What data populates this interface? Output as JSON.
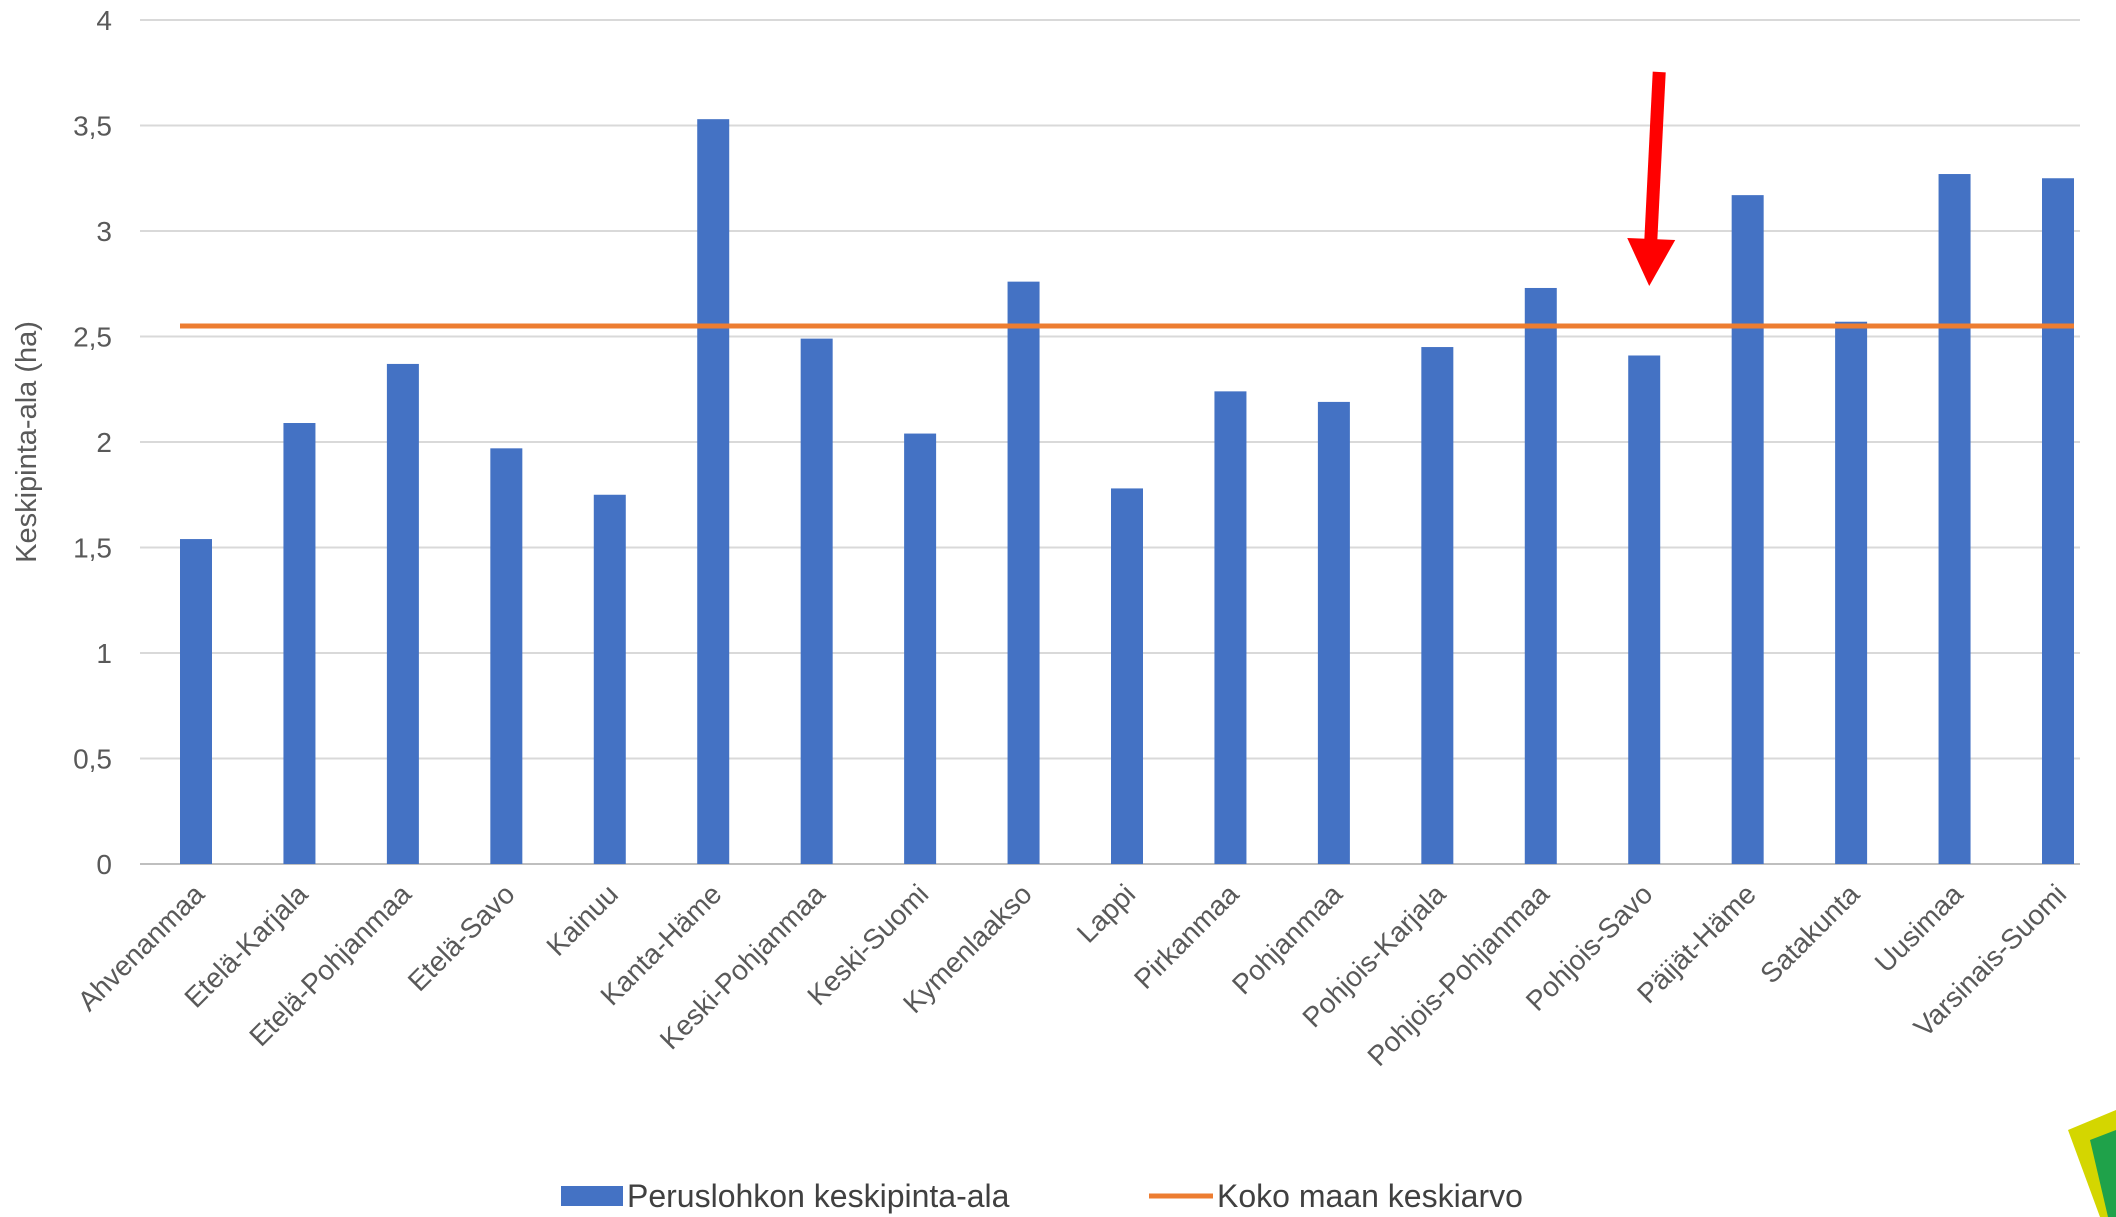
{
  "chart_data": {
    "type": "bar",
    "ylabel": "Keskipinta-ala (ha)",
    "ylim": [
      0,
      4
    ],
    "yticks": [
      "0",
      "0,5",
      "1",
      "1,5",
      "2",
      "2,5",
      "3",
      "3,5",
      "4"
    ],
    "grid": true,
    "legend_position": "bottom",
    "categories": [
      "Ahvenanmaa",
      "Etelä-Karjala",
      "Etelä-Pohjanmaa",
      "Etelä-Savo",
      "Kainuu",
      "Kanta-Häme",
      "Keski-Pohjanmaa",
      "Keski-Suomi",
      "Kymenlaakso",
      "Lappi",
      "Pirkanmaa",
      "Pohjanmaa",
      "Pohjois-Karjala",
      "Pohjois-Pohjanmaa",
      "Pohjois-Savo",
      "Päijät-Häme",
      "Satakunta",
      "Uusimaa",
      "Varsinais-Suomi"
    ],
    "series": [
      {
        "name": "Peruslohkon keskipinta-ala",
        "type": "bar",
        "color": "#4472c4",
        "values": [
          1.54,
          2.09,
          2.37,
          1.97,
          1.75,
          3.53,
          2.49,
          2.04,
          2.76,
          1.78,
          2.24,
          2.19,
          2.45,
          2.73,
          2.41,
          3.17,
          2.57,
          3.27,
          3.25
        ]
      },
      {
        "name": "Koko maan keskiarvo",
        "type": "line",
        "color": "#ed7d31",
        "value": 2.55
      }
    ],
    "annotations": [
      {
        "type": "arrow",
        "color": "#ff0000",
        "points_to": "Pohjois-Savo"
      }
    ]
  }
}
